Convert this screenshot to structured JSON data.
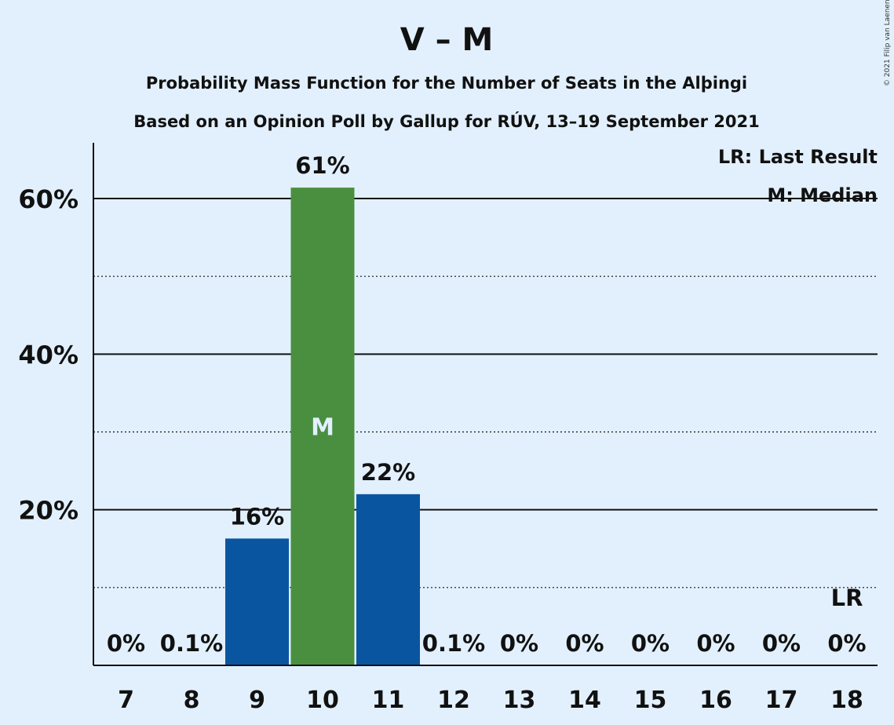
{
  "chart_data": {
    "type": "bar",
    "title": "V – M",
    "subtitle_lines": [
      "Probability Mass Function for the Number of Seats in the Alþingi",
      "Based on an Opinion Poll by Gallup for RÚV, 13–19 September 2021"
    ],
    "categories": [
      "7",
      "8",
      "9",
      "10",
      "11",
      "12",
      "13",
      "14",
      "15",
      "16",
      "17",
      "18"
    ],
    "values": [
      0,
      0.1,
      16.3,
      61.4,
      22.0,
      0.1,
      0,
      0,
      0,
      0,
      0,
      0
    ],
    "value_labels": [
      "0%",
      "0.1%",
      "16%",
      "61%",
      "22%",
      "0.1%",
      "0%",
      "0%",
      "0%",
      "0%",
      "0%",
      "0%"
    ],
    "ylim": [
      0,
      67
    ],
    "yticks": [
      {
        "value": 20,
        "label": "20%"
      },
      {
        "value": 40,
        "label": "40%"
      },
      {
        "value": 60,
        "label": "60%"
      }
    ],
    "minor_gridlines": [
      10,
      30,
      50
    ],
    "median_category": "10",
    "median_marker": "M",
    "last_result_category": "18",
    "last_result_marker": "LR",
    "legend": [
      "LR: Last Result",
      "M: Median"
    ],
    "legend_position": "top-right",
    "colors": {
      "background": "#e2f0fd",
      "bar": "#0a559f",
      "median_bar": "#4a8f40",
      "median_text": "#e2f0fd"
    },
    "credit": "© 2021 Filip van Laenen"
  }
}
